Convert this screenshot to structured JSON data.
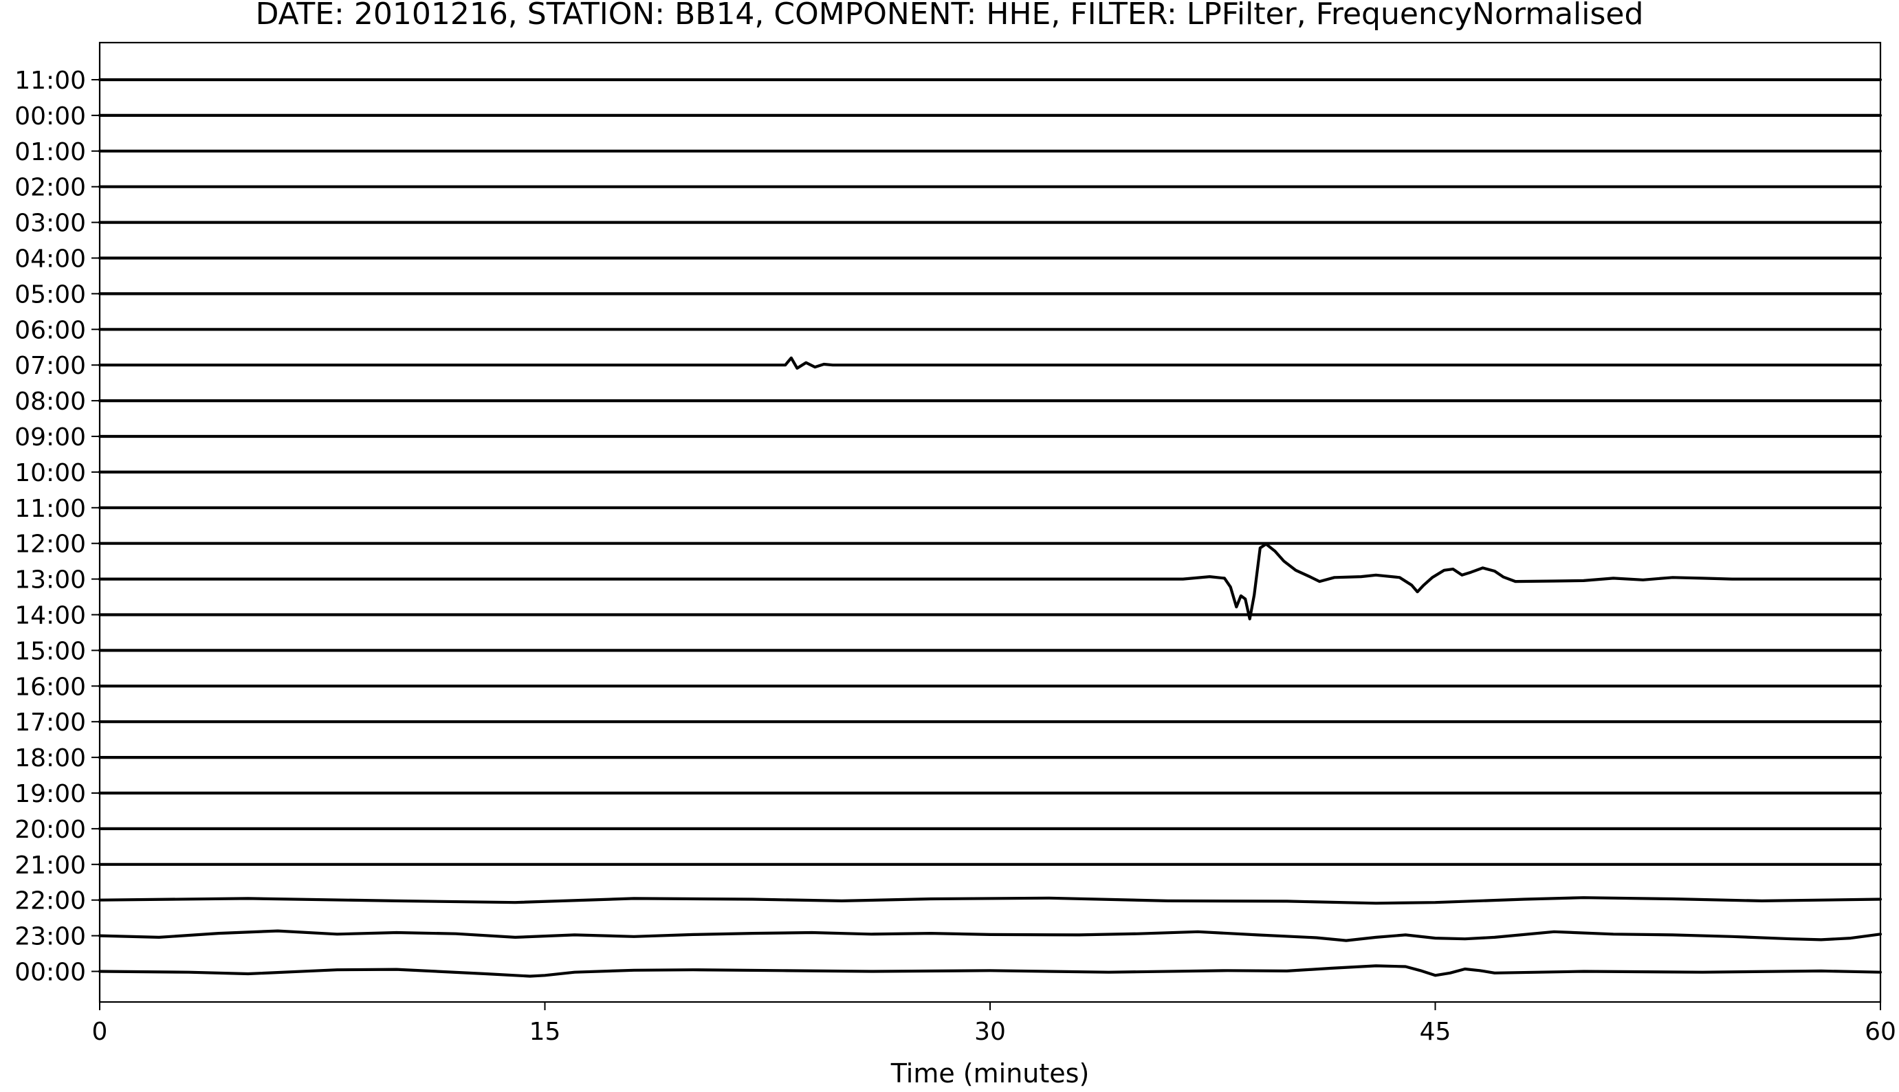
{
  "chart_data": {
    "type": "line",
    "title": "DATE: 20101216, STATION: BB14, COMPONENT: HHE, FILTER: LPFilter, FrequencyNormalised",
    "xlabel": "Time (minutes)",
    "ylabel": "",
    "xlim": [
      0,
      60
    ],
    "x_ticks": [
      0,
      15,
      30,
      45,
      60
    ],
    "row_labels": [
      "11:00",
      "00:00",
      "01:00",
      "02:00",
      "03:00",
      "04:00",
      "05:00",
      "06:00",
      "07:00",
      "08:00",
      "09:00",
      "10:00",
      "11:00",
      "12:00",
      "13:00",
      "14:00",
      "15:00",
      "16:00",
      "17:00",
      "18:00",
      "19:00",
      "20:00",
      "21:00",
      "22:00",
      "23:00",
      "00:00"
    ],
    "grid": false,
    "legend": "none",
    "line_color": "#000000",
    "series": [
      {
        "row": "11:00",
        "points": [
          [
            0,
            0
          ],
          [
            60,
            0
          ]
        ]
      },
      {
        "row": "00:00",
        "points": [
          [
            0,
            0
          ],
          [
            60,
            0
          ]
        ]
      },
      {
        "row": "01:00",
        "points": [
          [
            0,
            0
          ],
          [
            60,
            0
          ]
        ]
      },
      {
        "row": "02:00",
        "points": [
          [
            0,
            0
          ],
          [
            60,
            0
          ]
        ]
      },
      {
        "row": "03:00",
        "points": [
          [
            0,
            0
          ],
          [
            60,
            0
          ]
        ]
      },
      {
        "row": "04:00",
        "points": [
          [
            0,
            0
          ],
          [
            60,
            0
          ]
        ]
      },
      {
        "row": "05:00",
        "points": [
          [
            0,
            0
          ],
          [
            60,
            0
          ]
        ]
      },
      {
        "row": "06:00",
        "points": [
          [
            0,
            0
          ],
          [
            60,
            0
          ]
        ]
      },
      {
        "row": "07:00",
        "points": [
          [
            0,
            0
          ],
          [
            23.1,
            0
          ],
          [
            23.3,
            0.18
          ],
          [
            23.5,
            -0.08
          ],
          [
            23.8,
            0.06
          ],
          [
            24.1,
            -0.05
          ],
          [
            24.4,
            0.02
          ],
          [
            24.7,
            0
          ],
          [
            60,
            0
          ]
        ]
      },
      {
        "row": "08:00",
        "points": [
          [
            0,
            0
          ],
          [
            60,
            0
          ]
        ]
      },
      {
        "row": "09:00",
        "points": [
          [
            0,
            0
          ],
          [
            60,
            0
          ]
        ]
      },
      {
        "row": "10:00",
        "points": [
          [
            0,
            0
          ],
          [
            60,
            0
          ]
        ]
      },
      {
        "row": "11:00",
        "points": [
          [
            0,
            0
          ],
          [
            60,
            0
          ]
        ]
      },
      {
        "row": "12:00",
        "points": [
          [
            0,
            0
          ],
          [
            60,
            0
          ]
        ]
      },
      {
        "row": "13:00",
        "points": [
          [
            0,
            0
          ],
          [
            36.5,
            0
          ],
          [
            37.4,
            0.06
          ],
          [
            37.9,
            0.02
          ],
          [
            38.1,
            -0.2
          ],
          [
            38.3,
            -0.7
          ],
          [
            38.45,
            -0.42
          ],
          [
            38.6,
            -0.5
          ],
          [
            38.75,
            -1.0
          ],
          [
            38.9,
            -0.4
          ],
          [
            39.1,
            0.78
          ],
          [
            39.3,
            0.88
          ],
          [
            39.6,
            0.7
          ],
          [
            39.9,
            0.45
          ],
          [
            40.3,
            0.22
          ],
          [
            40.8,
            0.05
          ],
          [
            41.1,
            -0.06
          ],
          [
            41.6,
            0.04
          ],
          [
            42.5,
            0.06
          ],
          [
            43.0,
            0.1
          ],
          [
            43.8,
            0.04
          ],
          [
            44.2,
            -0.15
          ],
          [
            44.4,
            -0.32
          ],
          [
            44.6,
            -0.16
          ],
          [
            44.9,
            0.04
          ],
          [
            45.3,
            0.22
          ],
          [
            45.6,
            0.25
          ],
          [
            45.9,
            0.1
          ],
          [
            46.2,
            0.17
          ],
          [
            46.6,
            0.28
          ],
          [
            47.0,
            0.2
          ],
          [
            47.3,
            0.05
          ],
          [
            47.7,
            -0.06
          ],
          [
            49,
            -0.05
          ],
          [
            50,
            -0.04
          ],
          [
            51,
            0.02
          ],
          [
            52,
            -0.02
          ],
          [
            53,
            0.04
          ],
          [
            54,
            0.02
          ],
          [
            55,
            0
          ],
          [
            60,
            0
          ]
        ]
      },
      {
        "row": "14:00",
        "points": [
          [
            0,
            0
          ],
          [
            60,
            0
          ]
        ]
      },
      {
        "row": "15:00",
        "points": [
          [
            0,
            0
          ],
          [
            60,
            0
          ]
        ]
      },
      {
        "row": "16:00",
        "points": [
          [
            0,
            0
          ],
          [
            60,
            0
          ]
        ]
      },
      {
        "row": "17:00",
        "points": [
          [
            0,
            0
          ],
          [
            60,
            0
          ]
        ]
      },
      {
        "row": "18:00",
        "points": [
          [
            0,
            0
          ],
          [
            60,
            0
          ]
        ]
      },
      {
        "row": "19:00",
        "points": [
          [
            0,
            0
          ],
          [
            60,
            0
          ]
        ]
      },
      {
        "row": "20:00",
        "points": [
          [
            0,
            0
          ],
          [
            60,
            0
          ]
        ]
      },
      {
        "row": "21:00",
        "points": [
          [
            0,
            0
          ],
          [
            60,
            0
          ]
        ]
      },
      {
        "row": "22:00",
        "points": [
          [
            0,
            0
          ],
          [
            5,
            0.04
          ],
          [
            10,
            -0.02
          ],
          [
            14,
            -0.06
          ],
          [
            18,
            0.04
          ],
          [
            22,
            0.02
          ],
          [
            25,
            -0.02
          ],
          [
            28,
            0.03
          ],
          [
            32,
            0.05
          ],
          [
            36,
            -0.02
          ],
          [
            40,
            -0.03
          ],
          [
            43,
            -0.08
          ],
          [
            45,
            -0.06
          ],
          [
            48,
            0.02
          ],
          [
            50,
            0.06
          ],
          [
            53,
            0.03
          ],
          [
            56,
            -0.02
          ],
          [
            60,
            0.02
          ]
        ]
      },
      {
        "row": "23:00",
        "points": [
          [
            0,
            0
          ],
          [
            2,
            -0.04
          ],
          [
            4,
            0.06
          ],
          [
            6,
            0.12
          ],
          [
            8,
            0.04
          ],
          [
            10,
            0.08
          ],
          [
            12,
            0.05
          ],
          [
            14,
            -0.04
          ],
          [
            16,
            0.02
          ],
          [
            18,
            -0.02
          ],
          [
            20,
            0.03
          ],
          [
            22,
            0.06
          ],
          [
            24,
            0.08
          ],
          [
            26,
            0.04
          ],
          [
            28,
            0.06
          ],
          [
            30,
            0.03
          ],
          [
            33,
            0.02
          ],
          [
            35,
            0.05
          ],
          [
            37,
            0.1
          ],
          [
            39,
            0.02
          ],
          [
            41,
            -0.05
          ],
          [
            42,
            -0.12
          ],
          [
            43,
            -0.04
          ],
          [
            44,
            0.02
          ],
          [
            45,
            -0.06
          ],
          [
            46,
            -0.08
          ],
          [
            47,
            -0.04
          ],
          [
            49,
            0.1
          ],
          [
            51,
            0.04
          ],
          [
            53,
            0.02
          ],
          [
            55,
            -0.02
          ],
          [
            57,
            -0.08
          ],
          [
            58,
            -0.1
          ],
          [
            59,
            -0.06
          ],
          [
            60,
            0.04
          ]
        ]
      },
      {
        "row": "00:00",
        "points": [
          [
            0,
            0
          ],
          [
            3,
            -0.02
          ],
          [
            5,
            -0.06
          ],
          [
            8,
            0.04
          ],
          [
            10,
            0.05
          ],
          [
            13,
            -0.06
          ],
          [
            14.5,
            -0.12
          ],
          [
            15,
            -0.1
          ],
          [
            16,
            -0.02
          ],
          [
            18,
            0.03
          ],
          [
            20,
            0.04
          ],
          [
            23,
            0.02
          ],
          [
            26,
            0
          ],
          [
            30,
            0.02
          ],
          [
            34,
            -0.02
          ],
          [
            38,
            0.02
          ],
          [
            40,
            0.01
          ],
          [
            41.5,
            0.08
          ],
          [
            43,
            0.14
          ],
          [
            44,
            0.12
          ],
          [
            44.5,
            0.02
          ],
          [
            45,
            -0.1
          ],
          [
            45.5,
            -0.04
          ],
          [
            46,
            0.06
          ],
          [
            46.5,
            0.02
          ],
          [
            47,
            -0.04
          ],
          [
            50,
            0
          ],
          [
            54,
            -0.02
          ],
          [
            58,
            0.01
          ],
          [
            60,
            -0.02
          ]
        ]
      }
    ]
  }
}
